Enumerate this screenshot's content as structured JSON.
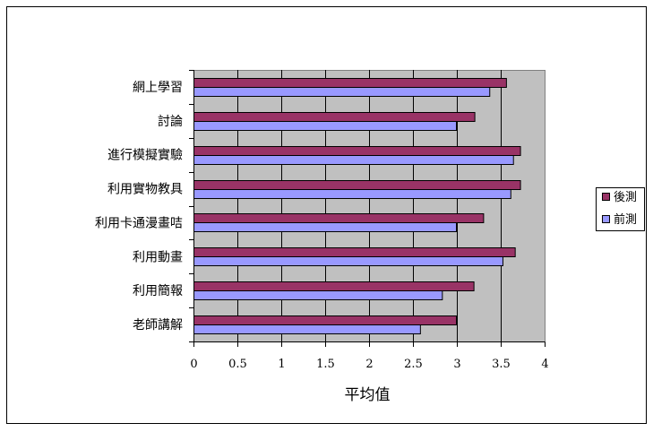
{
  "chart_data": {
    "type": "bar",
    "orientation": "horizontal",
    "title": "",
    "xlabel": "平均值",
    "ylabel": "",
    "xlim": [
      0,
      4
    ],
    "x_ticks": [
      "0",
      "0.5",
      "1",
      "1.5",
      "2",
      "2.5",
      "3",
      "3.5",
      "4"
    ],
    "grid": true,
    "legend_position": "right",
    "categories": [
      "網上學習",
      "討論",
      "進行模擬實驗",
      "利用實物教具",
      "利用卡通漫畫咭",
      "利用動畫",
      "利用簡報",
      "老師講解"
    ],
    "series": [
      {
        "name": "後測",
        "color": "#993366",
        "values": [
          3.56,
          3.2,
          3.72,
          3.72,
          3.3,
          3.66,
          3.19,
          2.99
        ]
      },
      {
        "name": "前測",
        "color": "#9999ff",
        "values": [
          3.37,
          2.99,
          3.64,
          3.61,
          2.99,
          3.52,
          2.83,
          2.58
        ]
      }
    ]
  }
}
